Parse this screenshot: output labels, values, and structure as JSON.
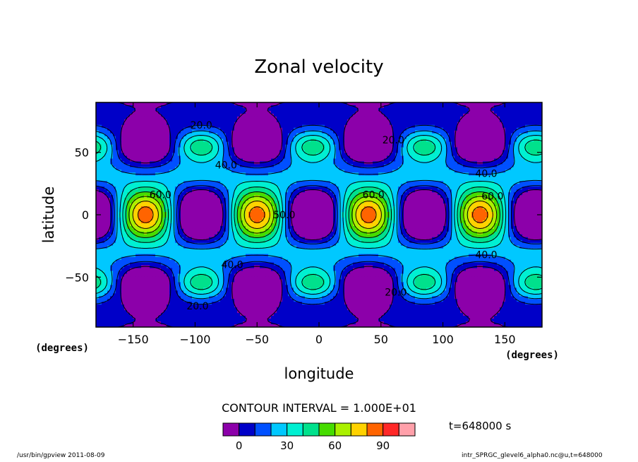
{
  "chart_data": {
    "type": "contour",
    "title": "Zonal velocity",
    "xlabel": "longitude",
    "ylabel": "latitude",
    "x_units": "(degrees)",
    "y_units": "(degrees)",
    "xlim": [
      -180,
      180
    ],
    "ylim": [
      -90,
      90
    ],
    "xticks": [
      -150,
      -100,
      -50,
      0,
      50,
      100,
      150
    ],
    "yticks": [
      50,
      0,
      -50
    ],
    "contour_interval_text": "CONTOUR INTERVAL = 1.000E+01",
    "contour_interval": 10,
    "time_label": "t=648000 s",
    "colorbar": {
      "tick_labels": [
        "0",
        "30",
        "60",
        "90"
      ],
      "tick_values": [
        0,
        30,
        60,
        90
      ],
      "levels": [
        -10,
        0,
        10,
        20,
        30,
        40,
        50,
        60,
        70,
        80,
        90,
        100,
        110
      ],
      "colors": [
        "#8c00aa",
        "#0000c8",
        "#0050ff",
        "#00c8ff",
        "#00f0d2",
        "#00e18c",
        "#46dc00",
        "#aaf000",
        "#ffd200",
        "#ff6400",
        "#ff2828",
        "#ffa0aa"
      ]
    },
    "contour_labels": [
      {
        "text": "20.0",
        "lon": -95,
        "lat": 72
      },
      {
        "text": "20.0",
        "lon": 60,
        "lat": 60
      },
      {
        "text": "20.0",
        "lon": 62,
        "lat": -62
      },
      {
        "text": "20.0",
        "lon": -98,
        "lat": -73
      },
      {
        "text": "40.0",
        "lon": -75,
        "lat": 40
      },
      {
        "text": "40.0",
        "lon": 135,
        "lat": 33
      },
      {
        "text": "40.0",
        "lon": -70,
        "lat": -40
      },
      {
        "text": "40.0",
        "lon": 135,
        "lat": -32
      },
      {
        "text": "60.0",
        "lon": -128,
        "lat": 16
      },
      {
        "text": "60.0",
        "lon": 44,
        "lat": 16
      },
      {
        "text": "60.0",
        "lon": 140,
        "lat": 15
      },
      {
        "text": "50.0",
        "lon": -28,
        "lat": 0
      }
    ]
  },
  "footer": {
    "left": "/usr/bin/gpview   2011-08-09",
    "right": "intr_SPRGC_glevel6_alpha0.nc@u,t=648000"
  }
}
